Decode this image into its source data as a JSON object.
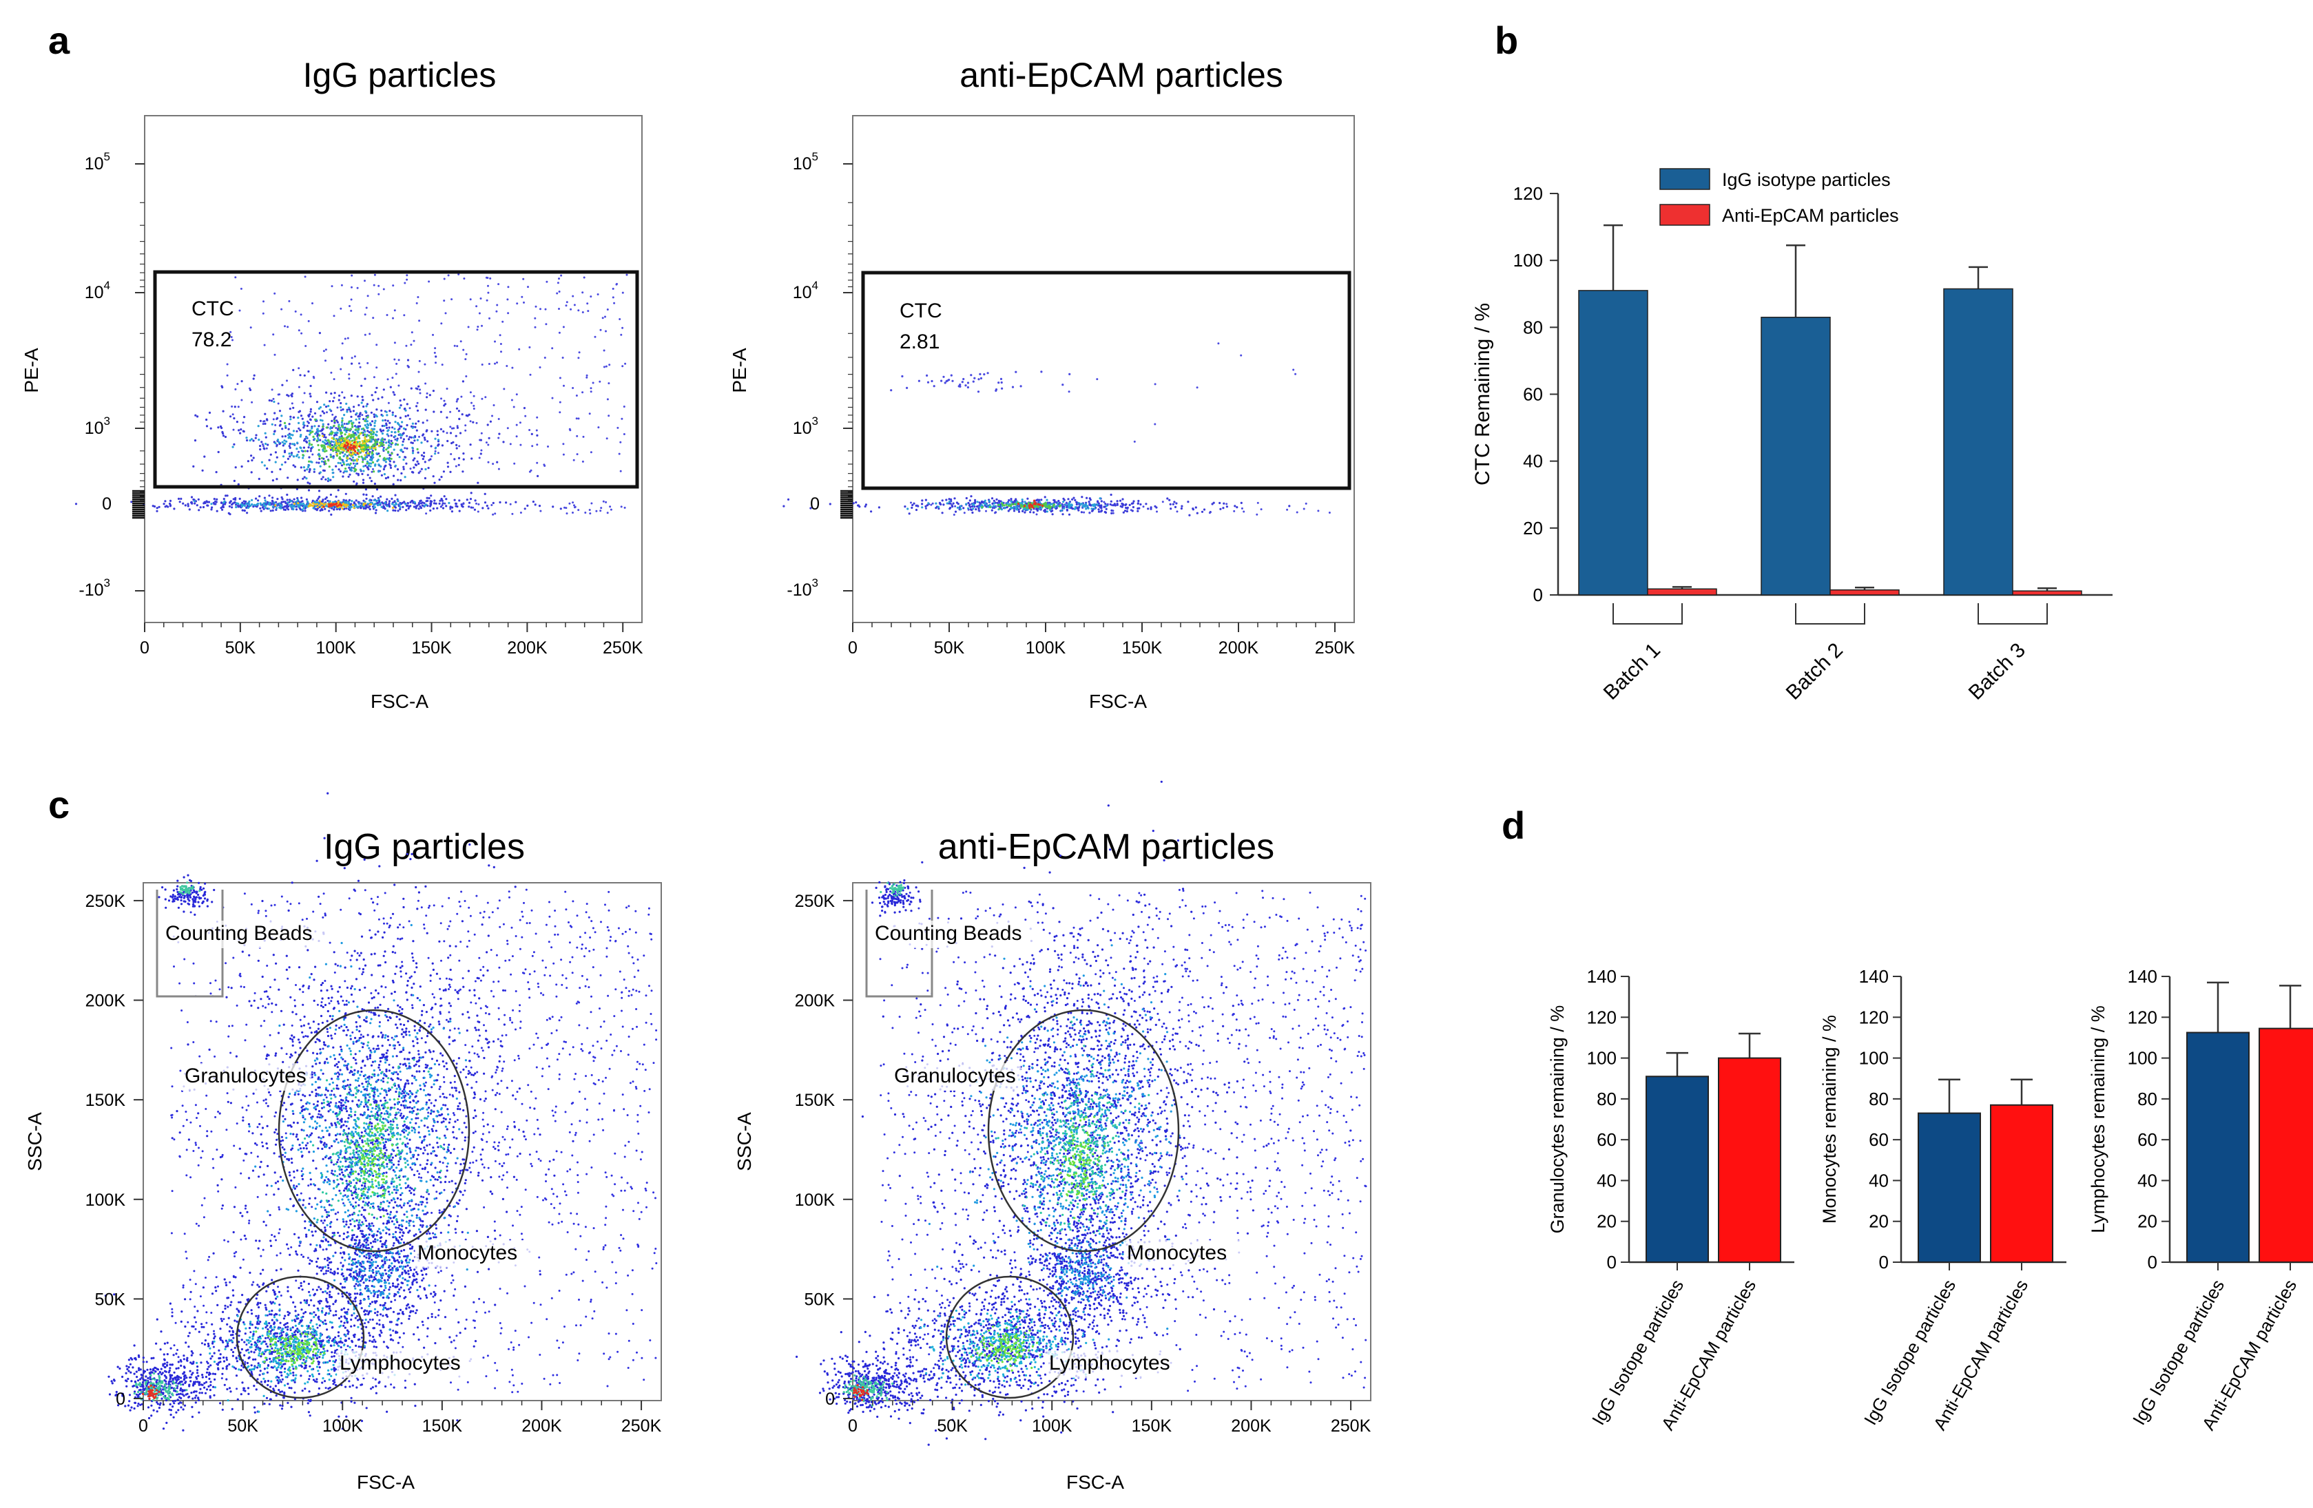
{
  "panels": {
    "a": {
      "letter": "a",
      "plots": [
        {
          "title": "IgG particles",
          "xlabel": "FSC-A",
          "ylabel": "PE-A",
          "xticks": [
            "0",
            "50K",
            "100K",
            "150K",
            "200K",
            "250K"
          ],
          "yticks": [
            {
              "base": "10",
              "exp": "5"
            },
            {
              "base": "10",
              "exp": "4"
            },
            {
              "base": "10",
              "exp": "3"
            },
            {
              "base": "0",
              "exp": ""
            },
            {
              "base": "-10",
              "exp": "3"
            }
          ],
          "gate_name": "CTC",
          "gate_value": "78.2"
        },
        {
          "title": "anti-EpCAM particles",
          "xlabel": "FSC-A",
          "ylabel": "PE-A",
          "xticks": [
            "0",
            "50K",
            "100K",
            "150K",
            "200K",
            "250K"
          ],
          "yticks": [
            {
              "base": "10",
              "exp": "5"
            },
            {
              "base": "10",
              "exp": "4"
            },
            {
              "base": "10",
              "exp": "3"
            },
            {
              "base": "0",
              "exp": ""
            },
            {
              "base": "-10",
              "exp": "3"
            }
          ],
          "gate_name": "CTC",
          "gate_value": "2.81"
        }
      ]
    },
    "c": {
      "letter": "c",
      "plots": [
        {
          "title": "IgG particles",
          "xlabel": "FSC-A",
          "ylabel": "SSC-A",
          "xticks": [
            "0",
            "50K",
            "100K",
            "150K",
            "200K",
            "250K"
          ],
          "yticks": [
            "250K",
            "200K",
            "150K",
            "100K",
            "50K",
            "0"
          ],
          "gates": [
            "Counting Beads",
            "Granulocytes",
            "Monocytes",
            "Lymphocytes"
          ]
        },
        {
          "title": "anti-EpCAM particles",
          "xlabel": "FSC-A",
          "ylabel": "SSC-A",
          "xticks": [
            "0",
            "50K",
            "100K",
            "150K",
            "200K",
            "250K"
          ],
          "yticks": [
            "250K",
            "200K",
            "150K",
            "100K",
            "50K",
            "0"
          ],
          "gates": [
            "Counting Beads",
            "Granulocytes",
            "Monocytes",
            "Lymphocytes"
          ]
        }
      ]
    },
    "b": {
      "letter": "b"
    },
    "d": {
      "letter": "d"
    }
  },
  "colors": {
    "igg_b": "#1a5f95",
    "epcam_b": "#ee3030",
    "igg_d": "#0d4a85",
    "epcam_d": "#ff1010"
  },
  "chart_data": [
    {
      "panel": "b",
      "type": "bar",
      "categories": [
        "Batch 1",
        "Batch 2",
        "Batch 3"
      ],
      "series": [
        {
          "name": "IgG isotype particles",
          "values": [
            91,
            83,
            91.5
          ],
          "errors": [
            19.5,
            21.5,
            6.5
          ]
        },
        {
          "name": "Anti-EpCAM particles",
          "values": [
            1.8,
            1.5,
            1.2
          ],
          "errors": [
            0.6,
            0.7,
            0.8
          ]
        }
      ],
      "ylabel": "CTC Remaining / %",
      "ylim": [
        0,
        120
      ],
      "yticks": [
        "0",
        "20",
        "40",
        "60",
        "80",
        "100",
        "120"
      ],
      "legend": "top"
    },
    {
      "panel": "d",
      "type": "bar",
      "categories": [
        "IgG Isotope particles",
        "Anti-EpCAM particles"
      ],
      "values": [
        91,
        100
      ],
      "errors": [
        11.5,
        12
      ],
      "ylabel": "Granulocytes remaining / %",
      "ylim": [
        0,
        140
      ],
      "yticks": [
        "0",
        "20",
        "40",
        "60",
        "80",
        "100",
        "120",
        "140"
      ]
    },
    {
      "panel": "d",
      "type": "bar",
      "categories": [
        "IgG Isotope particles",
        "Anti-EpCAM particles"
      ],
      "values": [
        73,
        77
      ],
      "errors": [
        16.5,
        12.5
      ],
      "ylabel": "Monocytes remaining / %",
      "ylim": [
        0,
        140
      ],
      "yticks": [
        "0",
        "20",
        "40",
        "60",
        "80",
        "100",
        "120",
        "140"
      ]
    },
    {
      "panel": "d",
      "type": "bar",
      "categories": [
        "IgG Isotope particles",
        "Anti-EpCAM particles"
      ],
      "values": [
        112.5,
        114.5
      ],
      "errors": [
        24.5,
        21
      ],
      "ylabel": "Lymphocytes remaining / %",
      "ylim": [
        0,
        140
      ],
      "yticks": [
        "0",
        "20",
        "40",
        "60",
        "80",
        "100",
        "120",
        "140"
      ]
    }
  ]
}
